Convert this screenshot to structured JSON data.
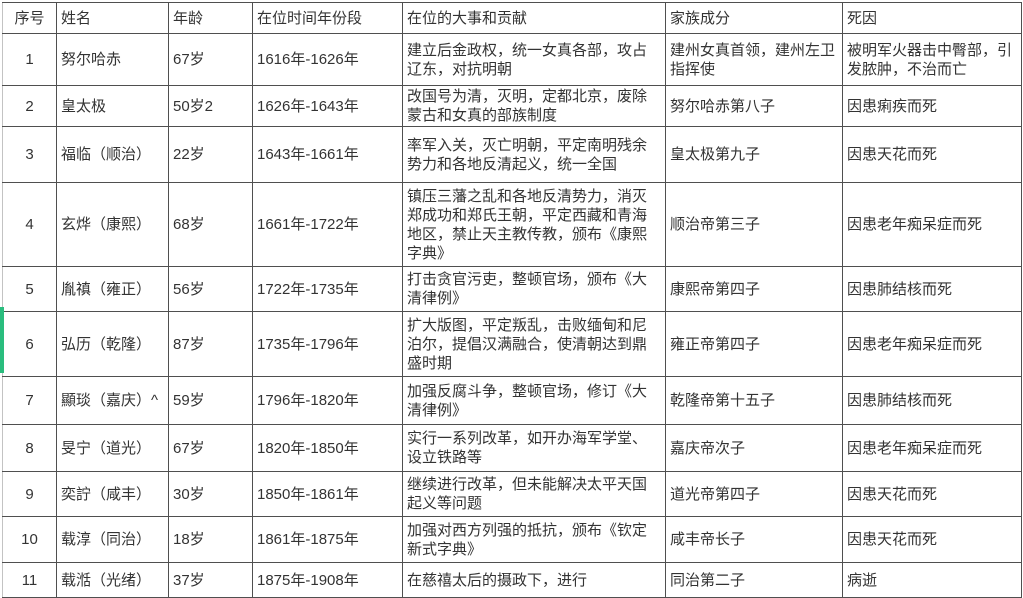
{
  "accent_color": "#2abd7e",
  "highlighted_row_number": "6",
  "table": {
    "headers": [
      "序号",
      "姓名",
      "年龄",
      "在位时间年份段",
      "在位的大事和贡献",
      "家族成分",
      "死因"
    ],
    "rows": [
      {
        "num": "1",
        "name": "努尔哈赤",
        "age": "67岁",
        "reign": "1616年-1626年",
        "deeds": "建立后金政权，统一女真各部，攻占辽东，对抗明朝",
        "family": "建州女真首领，建州左卫指挥使",
        "death": "被明军火器击中臀部，引发脓肿，不治而亡"
      },
      {
        "num": "2",
        "name": "皇太极",
        "age": "50岁2",
        "reign": "1626年-1643年",
        "deeds": "改国号为清，灭明，定都北京，废除蒙古和女真的部族制度",
        "family": "努尔哈赤第八子",
        "death": "因患痢疾而死"
      },
      {
        "num": "3",
        "name": "福临（顺治）",
        "age": "22岁",
        "reign": "1643年-1661年",
        "deeds": "率军入关，灭亡明朝，平定南明残余势力和各地反清起义，统一全国",
        "family": "皇太极第九子",
        "death": "因患天花而死"
      },
      {
        "num": "4",
        "name": "玄烨（康熙）",
        "age": "68岁",
        "reign": "1661年-1722年",
        "deeds": "镇压三藩之乱和各地反清势力，消灭郑成功和郑氏王朝，平定西藏和青海地区，禁止天主教传教，颁布《康熙字典》",
        "family": "顺治帝第三子",
        "death": "因患老年痴呆症而死"
      },
      {
        "num": "5",
        "name": "胤禛（雍正）",
        "age": "56岁",
        "reign": "1722年-1735年",
        "deeds": "打击贪官污吏，整顿官场，颁布《大清律例》",
        "family": "康熙帝第四子",
        "death": "因患肺结核而死"
      },
      {
        "num": "6",
        "name": "弘历（乾隆）",
        "age": "87岁",
        "reign": "1735年-1796年",
        "deeds": "扩大版图，平定叛乱，击败缅甸和尼泊尔，提倡汉满融合，使清朝达到鼎盛时期",
        "family": "雍正帝第四子",
        "death": "因患老年痴呆症而死"
      },
      {
        "num": "7",
        "name": "顯琰（嘉庆）^",
        "age": "59岁",
        "reign": "1796年-1820年",
        "deeds": "加强反腐斗争，整顿官场，修订《大清律例》",
        "family": "乾隆帝第十五子",
        "death": "因患肺结核而死"
      },
      {
        "num": "8",
        "name": "旻宁（道光）",
        "age": "67岁",
        "reign": "1820年-1850年",
        "deeds": "实行一系列改革，如开办海军学堂、设立铁路等",
        "family": "嘉庆帝次子",
        "death": "因患老年痴呆症而死"
      },
      {
        "num": "9",
        "name": "奕詝（咸丰）",
        "age": "30岁",
        "reign": "1850年-1861年",
        "deeds": "继续进行改革，但未能解决太平天国起义等问题",
        "family": "道光帝第四子",
        "death": "因患天花而死"
      },
      {
        "num": "10",
        "name": "载淳（同治）",
        "age": "18岁",
        "reign": "1861年-1875年",
        "deeds": "加强对西方列强的抵抗，颁布《钦定新式字典》",
        "family": "咸丰帝长子",
        "death": "因患天花而死"
      },
      {
        "num": "11",
        "name": "载湉（光绪）",
        "age": "37岁",
        "reign": "1875年-1908年",
        "deeds": "在慈禧太后的摄政下，进行",
        "family": "同治第二子",
        "death": "病逝"
      }
    ]
  }
}
